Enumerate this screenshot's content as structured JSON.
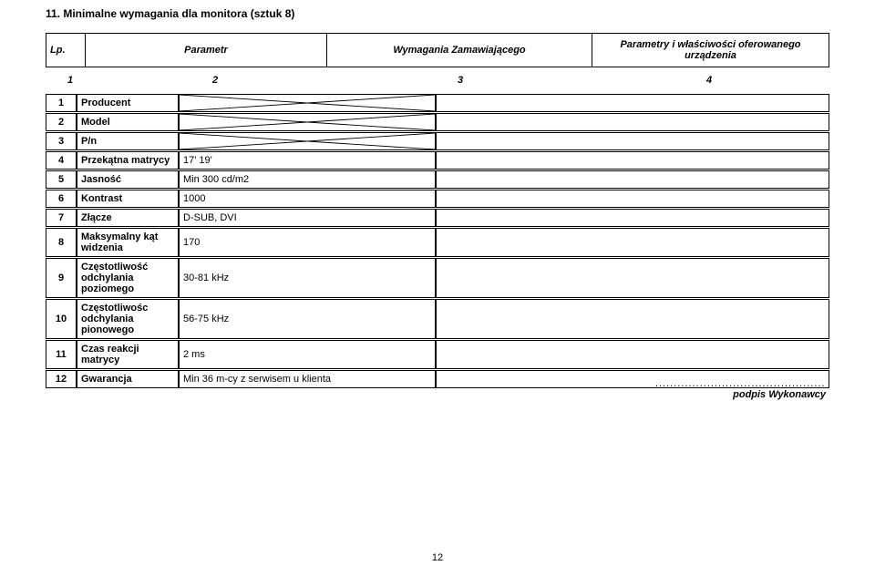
{
  "section_title": "11. Minimalne wymagania dla monitora (sztuk 8)",
  "head": {
    "lp": "Lp.",
    "param": "Parametr",
    "req": "Wymagania Zamawiającego",
    "off": "Parametry i właściwości oferowanego urządzenia"
  },
  "nums": {
    "n1": "1",
    "n2": "2",
    "n3": "3",
    "n4": "4"
  },
  "rows": [
    {
      "lp": "1",
      "param": "Producent",
      "req": "",
      "cross3": true,
      "cross4": false
    },
    {
      "lp": "2",
      "param": "Model",
      "req": "",
      "cross3": true,
      "cross4": false
    },
    {
      "lp": "3",
      "param": "P/n",
      "req": "",
      "cross3": true,
      "cross4": false
    },
    {
      "lp": "4",
      "param": "Przekątna matrycy",
      "req": "17' 19'",
      "cross3": false,
      "cross4": false
    },
    {
      "lp": "5",
      "param": "Jasność",
      "req": "Min 300 cd/m2",
      "cross3": false,
      "cross4": false
    },
    {
      "lp": "6",
      "param": "Kontrast",
      "req": "1000",
      "cross3": false,
      "cross4": false
    },
    {
      "lp": "7",
      "param": "Złącze",
      "req": "D-SUB, DVI",
      "cross3": false,
      "cross4": false
    },
    {
      "lp": "8",
      "param": "Maksymalny kąt widzenia",
      "req": "170",
      "cross3": false,
      "cross4": false
    },
    {
      "lp": "9",
      "param": "Częstotliwość odchylania poziomego",
      "req": "30-81 kHz",
      "cross3": false,
      "cross4": false
    },
    {
      "lp": "10",
      "param": "Częstotliwośc odchylania pionowego",
      "req": "56-75 kHz",
      "cross3": false,
      "cross4": false
    },
    {
      "lp": "11",
      "param": "Czas reakcji matrycy",
      "req": "2 ms",
      "cross3": false,
      "cross4": false
    },
    {
      "lp": "12",
      "param": "Gwarancja",
      "req": "Min 36 m-cy z serwisem u klienta",
      "cross3": false,
      "cross4": false
    }
  ],
  "signature": {
    "dots": "..............................................",
    "label": "podpis Wykonawcy"
  },
  "page_number": "12",
  "colors": {
    "background": "#ffffff",
    "text": "#000000",
    "border": "#000000"
  }
}
